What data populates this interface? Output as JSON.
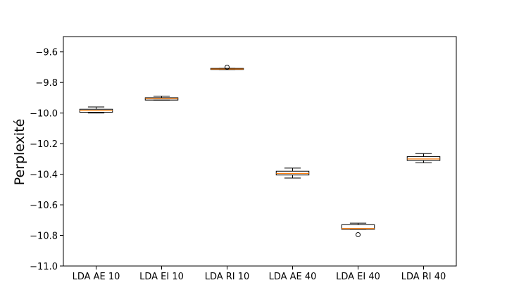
{
  "chart_data": {
    "type": "boxplot",
    "title": "",
    "xlabel": "",
    "ylabel": "Perplexité",
    "ylim": [
      -11.0,
      -9.5
    ],
    "yticks": [
      -11.0,
      -10.8,
      -10.6,
      -10.4,
      -10.2,
      -10.0,
      -9.8,
      -9.6
    ],
    "ytick_labels": [
      "−11.0",
      "−10.8",
      "−10.6",
      "−10.4",
      "−10.2",
      "−10.0",
      "−9.8",
      "−9.6"
    ],
    "grid": false,
    "categories": [
      "LDA AE 10",
      "LDA EI 10",
      "LDA RI 10",
      "LDA AE 40",
      "LDA EI 40",
      "LDA RI 40"
    ],
    "boxes": [
      {
        "whislo": -10.0,
        "q1": -9.995,
        "med": -9.985,
        "q3": -9.975,
        "whishi": -9.96,
        "fliers": []
      },
      {
        "whislo": -9.915,
        "q1": -9.915,
        "med": -9.905,
        "q3": -9.9,
        "whishi": -9.89,
        "fliers": []
      },
      {
        "whislo": -9.715,
        "q1": -9.715,
        "med": -9.712,
        "q3": -9.708,
        "whishi": -9.708,
        "fliers": [
          -9.7
        ]
      },
      {
        "whislo": -10.425,
        "q1": -10.405,
        "med": -10.395,
        "q3": -10.38,
        "whishi": -10.36,
        "fliers": []
      },
      {
        "whislo": -10.76,
        "q1": -10.76,
        "med": -10.755,
        "q3": -10.73,
        "whishi": -10.72,
        "fliers": [
          -10.795
        ]
      },
      {
        "whislo": -10.325,
        "q1": -10.31,
        "med": -10.3,
        "q3": -10.285,
        "whishi": -10.265,
        "fliers": []
      }
    ],
    "colors": {
      "box": "#000000",
      "median": "#ff7f0e",
      "background": "#ffffff"
    }
  }
}
